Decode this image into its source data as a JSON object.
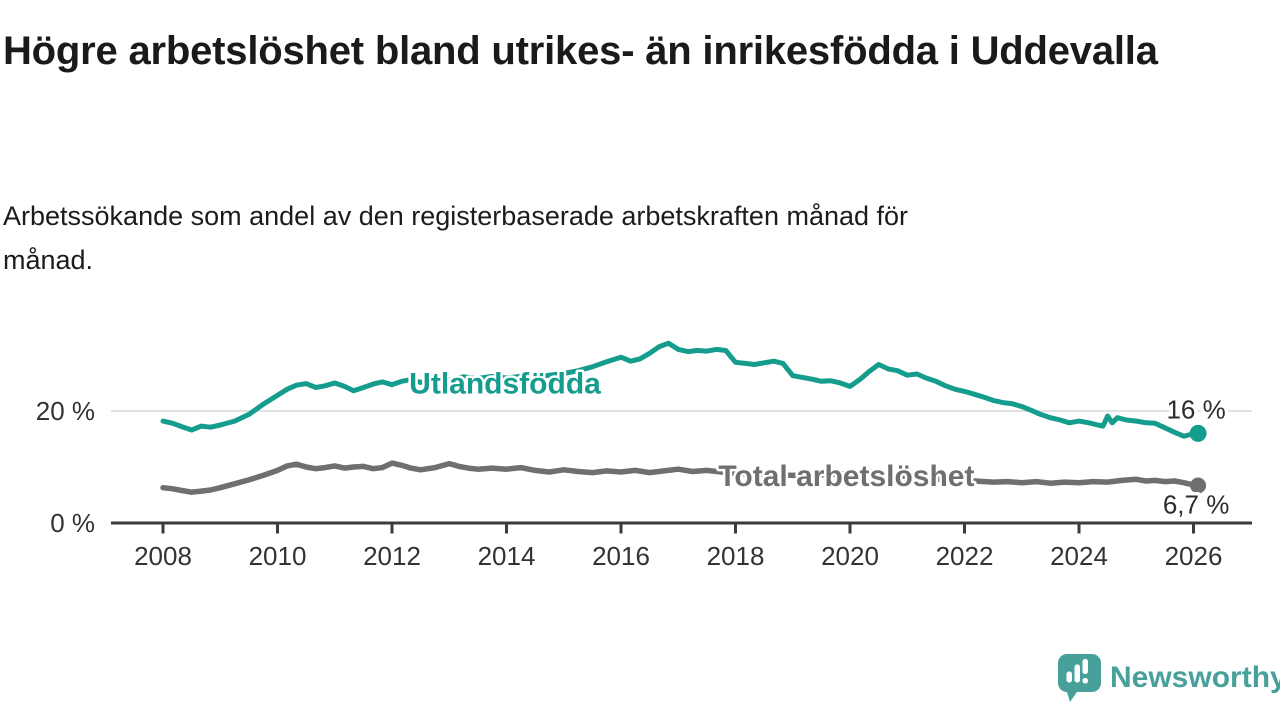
{
  "header": {
    "title": "Högre arbetslöshet bland utrikes- än inrikesfödda i Uddevalla",
    "subtitle": "Arbetssökande som andel av den registerbaserade arbetskraften månad för månad."
  },
  "chart_data": {
    "type": "line",
    "title": "Högre arbetslöshet bland utrikes- än inrikesfödda i Uddevalla",
    "subtitle": "Arbetssökande som andel av den registerbaserade arbetskraften månad för månad.",
    "unit": "%",
    "x_axis": {
      "ticks": [
        2008,
        2010,
        2012,
        2014,
        2016,
        2018,
        2020,
        2022,
        2024,
        2026
      ],
      "range": [
        2007.1,
        2027.1
      ]
    },
    "y_axis": {
      "ticks": [
        {
          "value": 0,
          "label": "0 %"
        },
        {
          "value": 20,
          "label": "20 %"
        }
      ],
      "gridlines": [
        20
      ],
      "range": [
        0,
        35
      ]
    },
    "grid_color": "#e2e2e2",
    "axis_color": "#3b3b3b",
    "legend_position": "labels-on-lines",
    "series": [
      {
        "name": "Utlandsfödda",
        "color": "#149c8d",
        "end_label": "16 %",
        "end_label_side": "above",
        "end_value": 16,
        "label_at": [
          2012.3,
          24.9
        ],
        "points": [
          [
            2008.0,
            18.2
          ],
          [
            2008.17,
            17.8
          ],
          [
            2008.33,
            17.2
          ],
          [
            2008.5,
            16.6
          ],
          [
            2008.67,
            17.3
          ],
          [
            2008.83,
            17.1
          ],
          [
            2009.0,
            17.5
          ],
          [
            2009.25,
            18.2
          ],
          [
            2009.5,
            19.4
          ],
          [
            2009.75,
            21.2
          ],
          [
            2010.0,
            22.8
          ],
          [
            2010.17,
            23.9
          ],
          [
            2010.33,
            24.6
          ],
          [
            2010.5,
            24.9
          ],
          [
            2010.67,
            24.2
          ],
          [
            2010.83,
            24.5
          ],
          [
            2011.0,
            25.0
          ],
          [
            2011.17,
            24.4
          ],
          [
            2011.33,
            23.6
          ],
          [
            2011.5,
            24.2
          ],
          [
            2011.67,
            24.8
          ],
          [
            2011.83,
            25.2
          ],
          [
            2012.0,
            24.7
          ],
          [
            2012.17,
            25.3
          ],
          [
            2012.33,
            25.6
          ],
          [
            2012.5,
            25.1
          ],
          [
            2012.67,
            25.4
          ],
          [
            2012.83,
            25.9
          ],
          [
            2013.0,
            25.5
          ],
          [
            2013.25,
            26.1
          ],
          [
            2013.5,
            25.8
          ],
          [
            2013.75,
            26.2
          ],
          [
            2014.0,
            25.9
          ],
          [
            2014.25,
            26.2
          ],
          [
            2014.5,
            26.0
          ],
          [
            2014.75,
            26.4
          ],
          [
            2015.0,
            26.7
          ],
          [
            2015.25,
            27.2
          ],
          [
            2015.5,
            27.9
          ],
          [
            2015.75,
            28.8
          ],
          [
            2016.0,
            29.6
          ],
          [
            2016.17,
            28.9
          ],
          [
            2016.33,
            29.3
          ],
          [
            2016.5,
            30.3
          ],
          [
            2016.67,
            31.5
          ],
          [
            2016.83,
            32.1
          ],
          [
            2017.0,
            31.0
          ],
          [
            2017.17,
            30.6
          ],
          [
            2017.33,
            30.8
          ],
          [
            2017.5,
            30.7
          ],
          [
            2017.67,
            31.0
          ],
          [
            2017.83,
            30.8
          ],
          [
            2018.0,
            28.7
          ],
          [
            2018.17,
            28.5
          ],
          [
            2018.33,
            28.3
          ],
          [
            2018.5,
            28.6
          ],
          [
            2018.67,
            28.9
          ],
          [
            2018.83,
            28.5
          ],
          [
            2019.0,
            26.3
          ],
          [
            2019.17,
            26.0
          ],
          [
            2019.33,
            25.7
          ],
          [
            2019.5,
            25.3
          ],
          [
            2019.67,
            25.4
          ],
          [
            2019.83,
            25.0
          ],
          [
            2020.0,
            24.4
          ],
          [
            2020.17,
            25.6
          ],
          [
            2020.33,
            27.0
          ],
          [
            2020.5,
            28.3
          ],
          [
            2020.67,
            27.5
          ],
          [
            2020.83,
            27.2
          ],
          [
            2021.0,
            26.4
          ],
          [
            2021.17,
            26.6
          ],
          [
            2021.33,
            25.9
          ],
          [
            2021.5,
            25.3
          ],
          [
            2021.67,
            24.5
          ],
          [
            2021.83,
            23.9
          ],
          [
            2022.0,
            23.5
          ],
          [
            2022.17,
            23.0
          ],
          [
            2022.33,
            22.5
          ],
          [
            2022.5,
            21.9
          ],
          [
            2022.67,
            21.5
          ],
          [
            2022.83,
            21.3
          ],
          [
            2023.0,
            20.8
          ],
          [
            2023.17,
            20.1
          ],
          [
            2023.33,
            19.4
          ],
          [
            2023.5,
            18.8
          ],
          [
            2023.67,
            18.4
          ],
          [
            2023.83,
            17.9
          ],
          [
            2024.0,
            18.2
          ],
          [
            2024.17,
            17.9
          ],
          [
            2024.33,
            17.5
          ],
          [
            2024.42,
            17.3
          ],
          [
            2024.5,
            19.1
          ],
          [
            2024.58,
            17.9
          ],
          [
            2024.67,
            18.8
          ],
          [
            2024.83,
            18.4
          ],
          [
            2025.0,
            18.2
          ],
          [
            2025.17,
            17.9
          ],
          [
            2025.33,
            17.8
          ],
          [
            2025.5,
            17.0
          ],
          [
            2025.67,
            16.2
          ],
          [
            2025.83,
            15.5
          ],
          [
            2025.95,
            15.8
          ],
          [
            2026.08,
            16.0
          ]
        ]
      },
      {
        "name": "Total arbetslöshet",
        "color": "#6f6f6f",
        "end_label": "6,7 %",
        "end_label_side": "below",
        "end_value": 6.7,
        "label_at": [
          2017.7,
          8.4
        ],
        "points": [
          [
            2008.0,
            6.3
          ],
          [
            2008.17,
            6.1
          ],
          [
            2008.33,
            5.8
          ],
          [
            2008.5,
            5.5
          ],
          [
            2008.67,
            5.7
          ],
          [
            2008.83,
            5.9
          ],
          [
            2009.0,
            6.3
          ],
          [
            2009.25,
            7.0
          ],
          [
            2009.5,
            7.7
          ],
          [
            2009.75,
            8.5
          ],
          [
            2010.0,
            9.4
          ],
          [
            2010.17,
            10.2
          ],
          [
            2010.33,
            10.5
          ],
          [
            2010.5,
            10.0
          ],
          [
            2010.67,
            9.7
          ],
          [
            2010.83,
            9.9
          ],
          [
            2011.0,
            10.2
          ],
          [
            2011.17,
            9.8
          ],
          [
            2011.33,
            10.0
          ],
          [
            2011.5,
            10.1
          ],
          [
            2011.67,
            9.7
          ],
          [
            2011.83,
            9.9
          ],
          [
            2012.0,
            10.7
          ],
          [
            2012.17,
            10.3
          ],
          [
            2012.33,
            9.8
          ],
          [
            2012.5,
            9.5
          ],
          [
            2012.75,
            9.9
          ],
          [
            2013.0,
            10.6
          ],
          [
            2013.17,
            10.1
          ],
          [
            2013.33,
            9.8
          ],
          [
            2013.5,
            9.6
          ],
          [
            2013.75,
            9.8
          ],
          [
            2014.0,
            9.6
          ],
          [
            2014.25,
            9.9
          ],
          [
            2014.5,
            9.4
          ],
          [
            2014.75,
            9.1
          ],
          [
            2015.0,
            9.5
          ],
          [
            2015.25,
            9.2
          ],
          [
            2015.5,
            9.0
          ],
          [
            2015.75,
            9.3
          ],
          [
            2016.0,
            9.1
          ],
          [
            2016.25,
            9.4
          ],
          [
            2016.5,
            9.0
          ],
          [
            2016.75,
            9.3
          ],
          [
            2017.0,
            9.6
          ],
          [
            2017.25,
            9.2
          ],
          [
            2017.5,
            9.4
          ],
          [
            2017.75,
            9.1
          ],
          [
            2018.0,
            8.9
          ],
          [
            2018.5,
            8.7
          ],
          [
            2019.0,
            8.5
          ],
          [
            2019.5,
            8.6
          ],
          [
            2020.0,
            8.8
          ],
          [
            2020.33,
            9.2
          ],
          [
            2020.5,
            9.0
          ],
          [
            2021.0,
            8.3
          ],
          [
            2021.5,
            7.8
          ],
          [
            2022.0,
            7.6
          ],
          [
            2022.5,
            7.3
          ],
          [
            2022.75,
            7.4
          ],
          [
            2023.0,
            7.2
          ],
          [
            2023.25,
            7.4
          ],
          [
            2023.5,
            7.1
          ],
          [
            2023.75,
            7.3
          ],
          [
            2024.0,
            7.2
          ],
          [
            2024.25,
            7.4
          ],
          [
            2024.5,
            7.3
          ],
          [
            2024.75,
            7.6
          ],
          [
            2025.0,
            7.8
          ],
          [
            2025.17,
            7.5
          ],
          [
            2025.33,
            7.6
          ],
          [
            2025.5,
            7.4
          ],
          [
            2025.67,
            7.5
          ],
          [
            2025.83,
            7.2
          ],
          [
            2026.0,
            6.8
          ],
          [
            2026.08,
            6.7
          ]
        ]
      }
    ]
  },
  "branding": {
    "logo_text": "Newsworthy",
    "logo_color": "#47a19a",
    "logo_icon": "bar-chart-speech-bubble"
  }
}
